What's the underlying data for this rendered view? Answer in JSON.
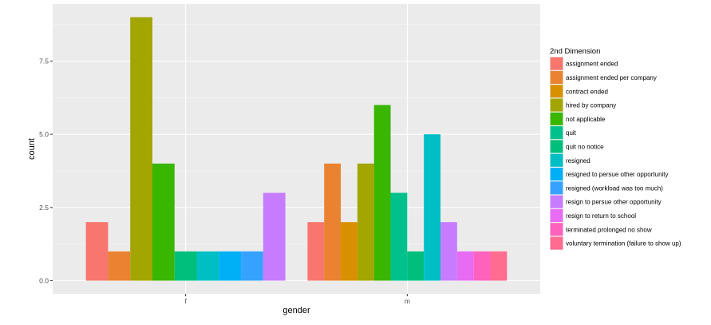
{
  "chart_data": {
    "type": "bar",
    "title": "",
    "xlabel": "gender",
    "ylabel": "count",
    "ylim": [
      -0.45,
      9.45
    ],
    "yticks": [
      0.0,
      2.5,
      5.0,
      7.5
    ],
    "ytick_labels": [
      "0.0",
      "2.5",
      "5.0",
      "7.5"
    ],
    "categories": [
      "f",
      "m"
    ],
    "legend": {
      "title": "2nd Dimension",
      "position": "right"
    },
    "grid": true,
    "series": [
      {
        "name": "assignment ended",
        "color": "#F8766D",
        "values": [
          2,
          2
        ]
      },
      {
        "name": "assignment ended per company",
        "color": "#EA8331",
        "values": [
          1,
          4
        ]
      },
      {
        "name": "contract ended",
        "color": "#D89000",
        "values": [
          null,
          2
        ]
      },
      {
        "name": "hired by company",
        "color": "#A3A500",
        "values": [
          9,
          4
        ]
      },
      {
        "name": "not applicable",
        "color": "#39B600",
        "values": [
          4,
          6
        ]
      },
      {
        "name": "quit",
        "color": "#00C08B",
        "values": [
          null,
          3
        ]
      },
      {
        "name": "quit no notice",
        "color": "#00BF7D",
        "values": [
          1,
          1
        ]
      },
      {
        "name": "resigned",
        "color": "#00BFC4",
        "values": [
          1,
          5
        ]
      },
      {
        "name": "resigned to persue other opportunity",
        "color": "#00B0F6",
        "values": [
          1,
          null
        ]
      },
      {
        "name": "resigned (workload was too much)",
        "color": "#35A2FF",
        "values": [
          1,
          null
        ]
      },
      {
        "name": "resign to persue other opportunity",
        "color": "#C77CFF",
        "values": [
          3,
          2
        ]
      },
      {
        "name": "resign to return to school",
        "color": "#E76BF3",
        "values": [
          null,
          1
        ]
      },
      {
        "name": "terminated prolonged no show",
        "color": "#FF62BC",
        "values": [
          null,
          1
        ]
      },
      {
        "name": "voluntary termination (failure to show up)",
        "color": "#FF6C90",
        "values": [
          null,
          1
        ]
      }
    ],
    "bars_drawn": [
      {
        "category": "f",
        "series": [
          "assignment ended",
          "assignment ended per company",
          "hired by company",
          "not applicable",
          "quit no notice",
          "resigned",
          "resigned to persue other opportunity",
          "resigned (workload was too much)",
          "resign to persue other opportunity"
        ]
      },
      {
        "category": "m",
        "series": [
          "assignment ended",
          "assignment ended per company",
          "contract ended",
          "hired by company",
          "not applicable",
          "quit",
          "quit no notice",
          "resigned",
          "resign to persue other opportunity",
          "resign to return to school",
          "terminated prolonged no show",
          "voluntary termination (failure to show up)"
        ]
      }
    ]
  }
}
